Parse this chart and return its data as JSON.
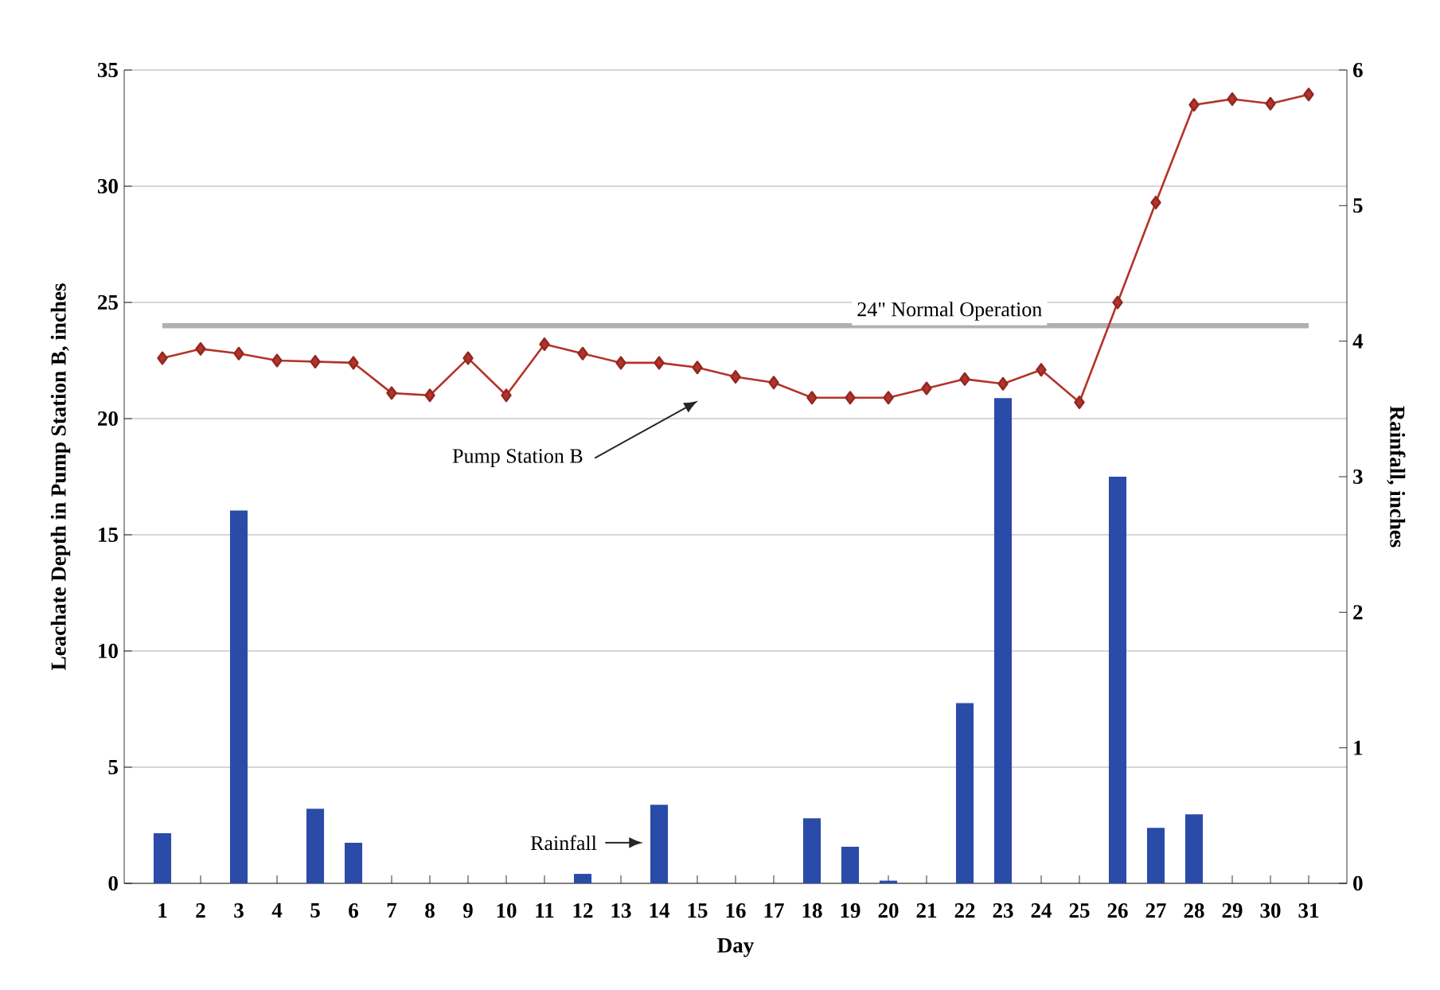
{
  "chart_data": {
    "type": "bar",
    "xlabel": "Day",
    "ylabel": "Leachate Depth in Pump Station B, inches",
    "y2label": "Rainfall, inches",
    "categories": [
      "1",
      "2",
      "3",
      "4",
      "5",
      "6",
      "7",
      "8",
      "9",
      "10",
      "11",
      "12",
      "13",
      "14",
      "15",
      "16",
      "17",
      "18",
      "19",
      "20",
      "21",
      "22",
      "23",
      "24",
      "25",
      "26",
      "27",
      "28",
      "29",
      "30",
      "31"
    ],
    "series": [
      {
        "name": "Rainfall",
        "axis": "y2",
        "color": "#2b4ba8",
        "values": [
          0.37,
          0,
          2.75,
          0,
          0.55,
          0.3,
          0,
          0,
          0,
          0,
          0,
          0.07,
          0,
          0.58,
          0,
          0,
          0,
          0.48,
          0.27,
          0.02,
          0,
          1.33,
          3.58,
          0,
          0,
          3.0,
          0.41,
          0.51,
          0,
          0,
          0
        ]
      },
      {
        "name": "Pump Station B",
        "type": "line",
        "color": "#b5332a",
        "marker": "diamond",
        "line_style": "solid",
        "values": [
          22.6,
          23.0,
          22.8,
          22.5,
          22.45,
          22.4,
          21.1,
          21.0,
          22.6,
          21.0,
          23.2,
          22.8,
          22.4,
          22.4,
          22.2,
          21.8,
          21.55,
          20.9,
          20.9,
          20.9,
          21.3,
          21.7,
          21.5,
          22.1,
          20.7,
          25.0,
          29.3,
          33.5,
          33.75,
          33.55,
          33.95
        ]
      }
    ],
    "ylim": [
      0,
      35
    ],
    "yticks": [
      0,
      5,
      10,
      15,
      20,
      25,
      30,
      35
    ],
    "y2lim": [
      0,
      6
    ],
    "y2ticks": [
      0,
      1,
      2,
      3,
      4,
      5,
      6
    ],
    "grid": "y",
    "ref_lines": [
      {
        "axis": "y",
        "value": 24,
        "label": "24\" Normal Operation",
        "color": "#b0b0b0",
        "line_style": "solid"
      }
    ]
  }
}
